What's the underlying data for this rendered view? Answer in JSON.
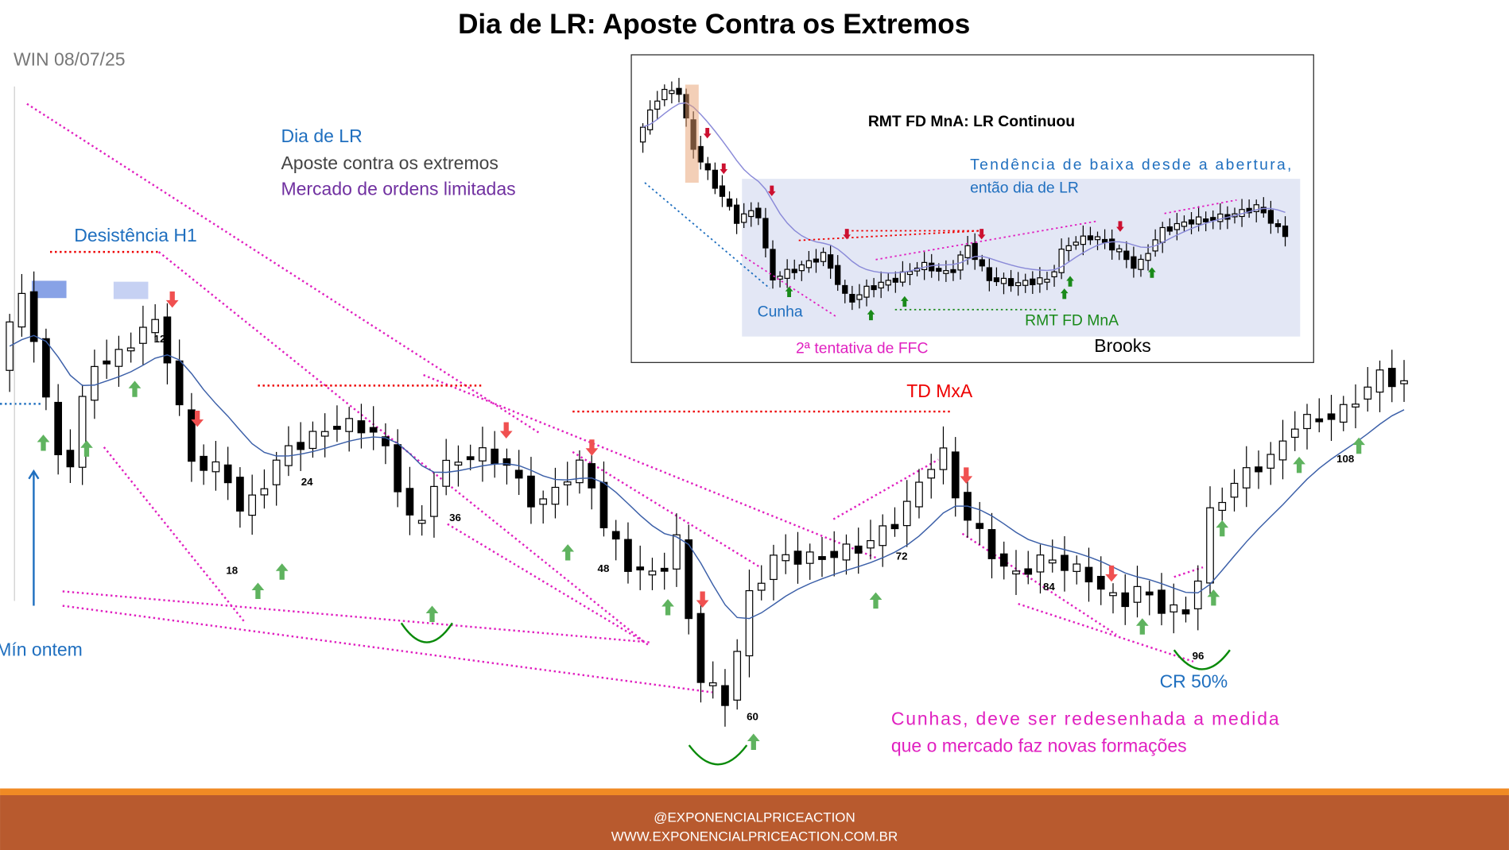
{
  "title": "Dia de LR: Aposte Contra os Extremos",
  "symbol": "WIN 08/07/25",
  "notes": [
    "Dia de LR",
    "Aposte contra os extremos",
    "Mercado de ordens limitadas"
  ],
  "annotations": {
    "h1": "Desistência H1",
    "min": "Mín ontem",
    "td": "TD MxA",
    "cr": "CR 50%",
    "wedge": [
      "Cunhas, deve ser redesenhada a medida",
      "que o mercado faz novas formações"
    ]
  },
  "bar_numbers": [
    "12",
    "18",
    "24",
    "36",
    "48",
    "60",
    "72",
    "84",
    "96",
    "108"
  ],
  "inset": {
    "title": "RMT FD MnA: LR Continuou",
    "trend": [
      "Tendência de baixa desde a abertura,",
      "então dia de LR"
    ],
    "cunha": "Cunha",
    "ffc": "2ª tentativa de FFC",
    "rmt": "RMT FD MnA",
    "source": "Brooks"
  },
  "footer": [
    "@EXPONENCIALPRICEACTION",
    "WWW.EXPONENCIALPRICEACTION.COM.BR"
  ]
}
